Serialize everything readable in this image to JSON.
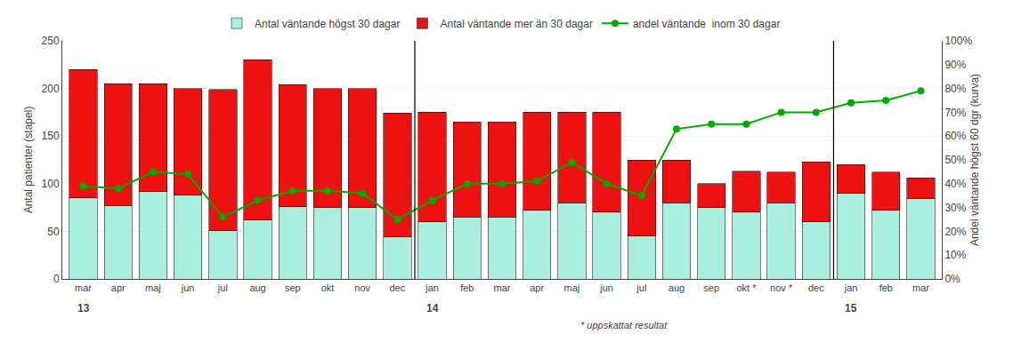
{
  "chart_data": {
    "type": "bar",
    "stacked": true,
    "grid": true,
    "legend": "top",
    "categories": [
      "mar",
      "apr",
      "maj",
      "jun",
      "jul",
      "aug",
      "sep",
      "okt",
      "nov",
      "dec",
      "jan",
      "feb",
      "mar",
      "apr",
      "maj",
      "jun",
      "jul",
      "aug",
      "sep",
      "okt *",
      "nov *",
      "dec",
      "jan",
      "feb",
      "mar"
    ],
    "y_label": "Antal patienter (stapel)",
    "y2_label": "Andel väntande högst 60 dgr (kurva)",
    "ylim": [
      0,
      250
    ],
    "yticks": [
      0,
      50,
      100,
      150,
      200,
      250
    ],
    "y2lim": [
      0.0,
      1.0
    ],
    "y2ticks": [
      {
        "value": 0.0,
        "label": "0%"
      },
      {
        "value": 0.1,
        "label": "10%"
      },
      {
        "value": 0.2,
        "label": "20%"
      },
      {
        "value": 0.3,
        "label": "30%"
      },
      {
        "value": 0.4,
        "label": "40%"
      },
      {
        "value": 0.5,
        "label": "50%"
      },
      {
        "value": 0.6,
        "label": "60%"
      },
      {
        "value": 0.7,
        "label": "70%"
      },
      {
        "value": 0.8,
        "label": "80%"
      },
      {
        "value": 0.9,
        "label": "90%"
      },
      {
        "value": 1.0,
        "label": "100%"
      }
    ],
    "series": [
      {
        "name": "Antal väntande högst 30 dagar",
        "type": "bar",
        "color": "#aaeedd",
        "values": [
          85,
          77,
          92,
          88,
          51,
          62,
          76,
          75,
          75,
          44,
          60,
          65,
          65,
          72,
          80,
          70,
          45,
          80,
          75,
          70,
          80,
          60,
          90,
          72,
          84
        ]
      },
      {
        "name": "Antal väntande mer än 30 dagar",
        "type": "bar",
        "color": "#ee1111",
        "values": [
          135,
          128,
          113,
          112,
          148,
          168,
          128,
          125,
          125,
          130,
          115,
          100,
          100,
          103,
          95,
          105,
          80,
          45,
          25,
          43,
          32,
          63,
          30,
          40,
          22
        ]
      },
      {
        "name": "andel väntande  inom 30 dagar",
        "type": "line",
        "axis": "y2",
        "color": "#00aa00",
        "marker": "circle",
        "values": [
          0.39,
          0.38,
          0.45,
          0.44,
          0.26,
          0.33,
          0.37,
          0.37,
          0.36,
          0.25,
          0.33,
          0.4,
          0.4,
          0.41,
          0.49,
          0.4,
          0.35,
          0.63,
          0.65,
          0.65,
          0.7,
          0.7,
          0.74,
          0.75,
          0.79
        ]
      }
    ],
    "vlines": [
      9.5,
      21.5
    ],
    "annotations": [
      {
        "text": "13",
        "x": 0
      },
      {
        "text": "14",
        "x": 10
      },
      {
        "text": "15",
        "x": 22
      },
      {
        "text": "* uppskattat resultat",
        "x": 15.5
      }
    ]
  }
}
